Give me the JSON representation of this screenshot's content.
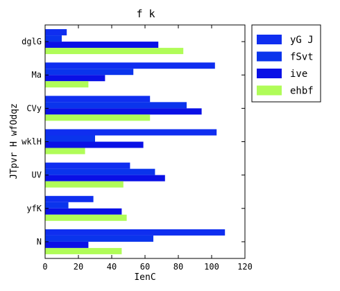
{
  "chart_data": {
    "type": "bar",
    "orientation": "horizontal",
    "title": "f k",
    "xlabel": "IenC",
    "ylabel": "JTpvr H wfOdqz",
    "categories": [
      "dglG",
      "Ma",
      "CVy",
      "wklH",
      "UV",
      "yfK",
      "N"
    ],
    "series": [
      {
        "name": "yG J",
        "color": "#0f2ef0",
        "values": [
          13,
          102,
          63,
          103,
          51,
          29,
          108
        ]
      },
      {
        "name": "fSvt",
        "color": "#0a34ec",
        "values": [
          10,
          53,
          85,
          30,
          66,
          14,
          65
        ]
      },
      {
        "name": "ive",
        "color": "#0a10e6",
        "values": [
          68,
          36,
          94,
          59,
          72,
          46,
          26
        ]
      },
      {
        "name": "ehbf",
        "color": "#b0fc58",
        "values": [
          83,
          26,
          63,
          24,
          47,
          49,
          46
        ]
      }
    ],
    "xlim": [
      0,
      120
    ],
    "xticks": [
      0,
      20,
      40,
      60,
      80,
      100,
      120
    ],
    "legend_position": "outside-top-right",
    "grid": false
  }
}
